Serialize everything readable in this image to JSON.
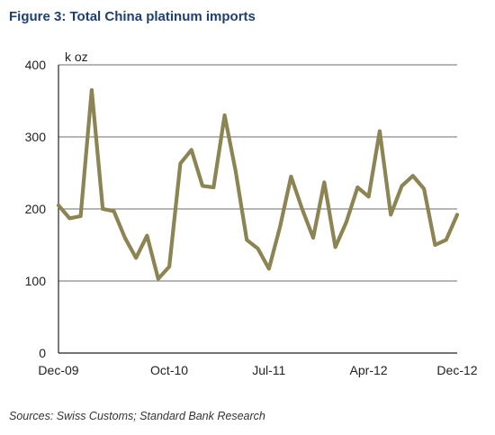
{
  "figure": {
    "title": "Figure 3: Total China platinum imports",
    "source": "Sources: Swiss Customs; Standard Bank Research"
  },
  "colors": {
    "title": "#1e3f73",
    "line": "#8c8452",
    "grid": "#8a8a8a",
    "axis": "#222222"
  },
  "chart_data": {
    "type": "line",
    "title": "",
    "xlabel": "",
    "ylabel": "k oz",
    "ylim": [
      0,
      400
    ],
    "yticks": [
      0,
      100,
      200,
      300,
      400
    ],
    "grid": true,
    "xtick_labels": [
      {
        "label": "Dec-09",
        "index": 0
      },
      {
        "label": "Oct-10",
        "index": 10
      },
      {
        "label": "Jul-11",
        "index": 19
      },
      {
        "label": "Apr-12",
        "index": 28
      },
      {
        "label": "Dec-12",
        "index": 36
      }
    ],
    "x": [
      "Dec-09",
      "Jan-10",
      "Feb-10",
      "Mar-10",
      "Apr-10",
      "May-10",
      "Jun-10",
      "Jul-10",
      "Aug-10",
      "Sep-10",
      "Oct-10",
      "Nov-10",
      "Dec-10",
      "Jan-11",
      "Feb-11",
      "Mar-11",
      "Apr-11",
      "May-11",
      "Jun-11",
      "Jul-11",
      "Aug-11",
      "Sep-11",
      "Oct-11",
      "Nov-11",
      "Dec-11",
      "Jan-12",
      "Feb-12",
      "Mar-12",
      "Apr-12",
      "May-12",
      "Jun-12",
      "Jul-12",
      "Aug-12",
      "Sep-12",
      "Oct-12",
      "Nov-12",
      "Dec-12"
    ],
    "series": [
      {
        "name": "",
        "values": [
          205,
          187,
          190,
          365,
          200,
          197,
          160,
          132,
          163,
          103,
          120,
          263,
          282,
          232,
          230,
          330,
          252,
          157,
          145,
          117,
          175,
          245,
          200,
          160,
          237,
          147,
          182,
          230,
          217,
          308,
          192,
          232,
          246,
          228,
          150,
          157,
          192
        ]
      }
    ]
  }
}
